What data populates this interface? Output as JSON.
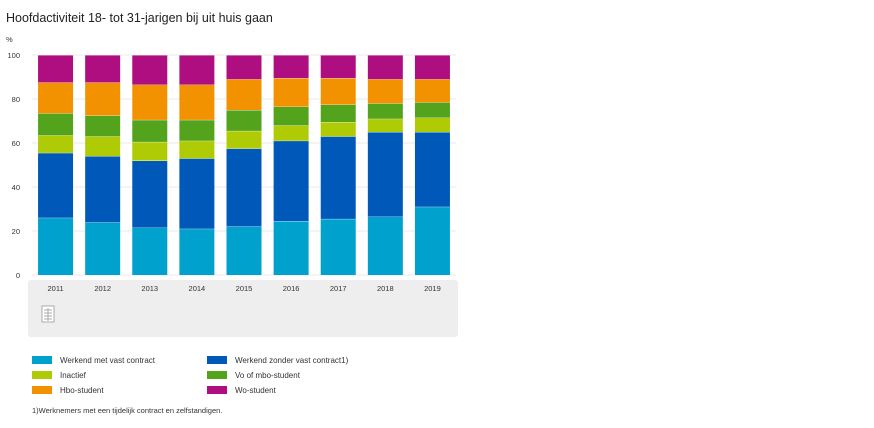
{
  "chart_data": {
    "type": "bar",
    "stacked": true,
    "title": "Hoofdactiviteit 18- tot 31-jarigen bij uit huis gaan",
    "ylabel": "%",
    "xlabel": "",
    "ylim": [
      0,
      100
    ],
    "yticks": [
      0,
      20,
      40,
      60,
      80,
      100
    ],
    "categories": [
      "2011",
      "2012",
      "2013",
      "2014",
      "2015",
      "2016",
      "2017",
      "2018",
      "2019"
    ],
    "series": [
      {
        "name": "Werkend met vast contract",
        "color": "#00a1cd",
        "values": [
          26,
          24,
          21.5,
          21,
          22,
          24.5,
          25.5,
          26.5,
          31
        ]
      },
      {
        "name": "Werkend zonder vast contract1)",
        "color": "#0058b8",
        "values": [
          29.5,
          30,
          30.5,
          32,
          35.5,
          36.5,
          37.5,
          38.5,
          34
        ]
      },
      {
        "name": "Inactief",
        "color": "#afcb05",
        "values": [
          8,
          9,
          8.5,
          8,
          8,
          7,
          6.5,
          6,
          6.5
        ]
      },
      {
        "name": "Vo of mbo-student",
        "color": "#53a31d",
        "values": [
          10,
          9.5,
          10,
          9.5,
          9.5,
          8.5,
          8,
          7,
          7
        ]
      },
      {
        "name": "Hbo-student",
        "color": "#f39200",
        "values": [
          14,
          15,
          16,
          16,
          14,
          13,
          12,
          11,
          10.5
        ]
      },
      {
        "name": "Wo-student",
        "color": "#af0e80",
        "values": [
          12.5,
          12.5,
          13.5,
          13.5,
          11,
          10.5,
          10.5,
          11,
          11
        ]
      }
    ],
    "legend_position": "bottom",
    "footnote": "1)Werknemers met een tijdelijk contract en zelfstandigen."
  },
  "ui": {
    "download_icon": "table-download-icon"
  }
}
